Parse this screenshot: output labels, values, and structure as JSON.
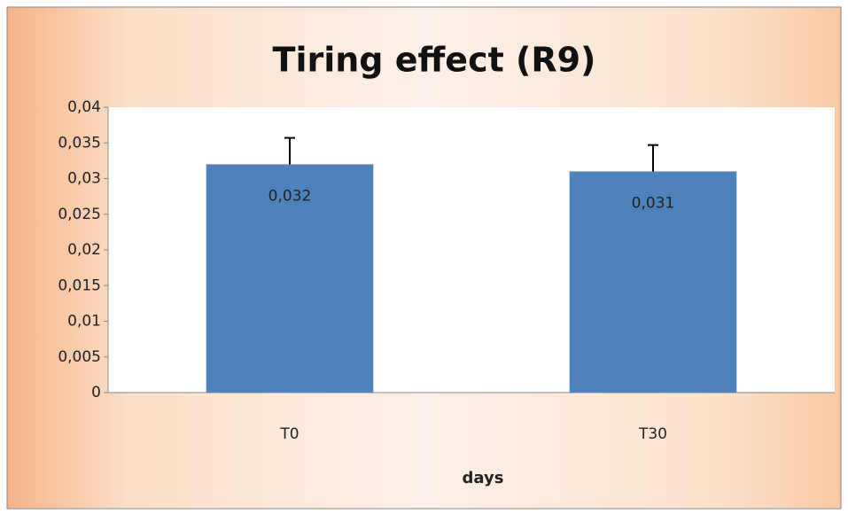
{
  "chart_data": {
    "type": "bar",
    "title": "Tiring effect (R9)",
    "x_label": "days",
    "categories": [
      "T0",
      "T30"
    ],
    "values": [
      0.032,
      0.031
    ],
    "value_labels": [
      "0,032",
      "0,031"
    ],
    "errors": [
      0.0037,
      0.0037
    ],
    "color": "#4f81bd",
    "ylim": [
      0,
      0.04
    ],
    "yticks": [
      0,
      {
        "value": 0.005,
        "label": "0,005"
      },
      {
        "value": 0.01,
        "label": "0,01"
      },
      {
        "value": 0.015,
        "label": "0,015"
      },
      {
        "value": 0.02,
        "label": "0,02"
      },
      {
        "value": 0.025,
        "label": "0,025"
      },
      {
        "value": 0.03,
        "label": "0,03"
      },
      {
        "value": 0.035,
        "label": "0,035"
      },
      {
        "value": 0.04,
        "label": "0,04"
      }
    ],
    "grid": false
  }
}
